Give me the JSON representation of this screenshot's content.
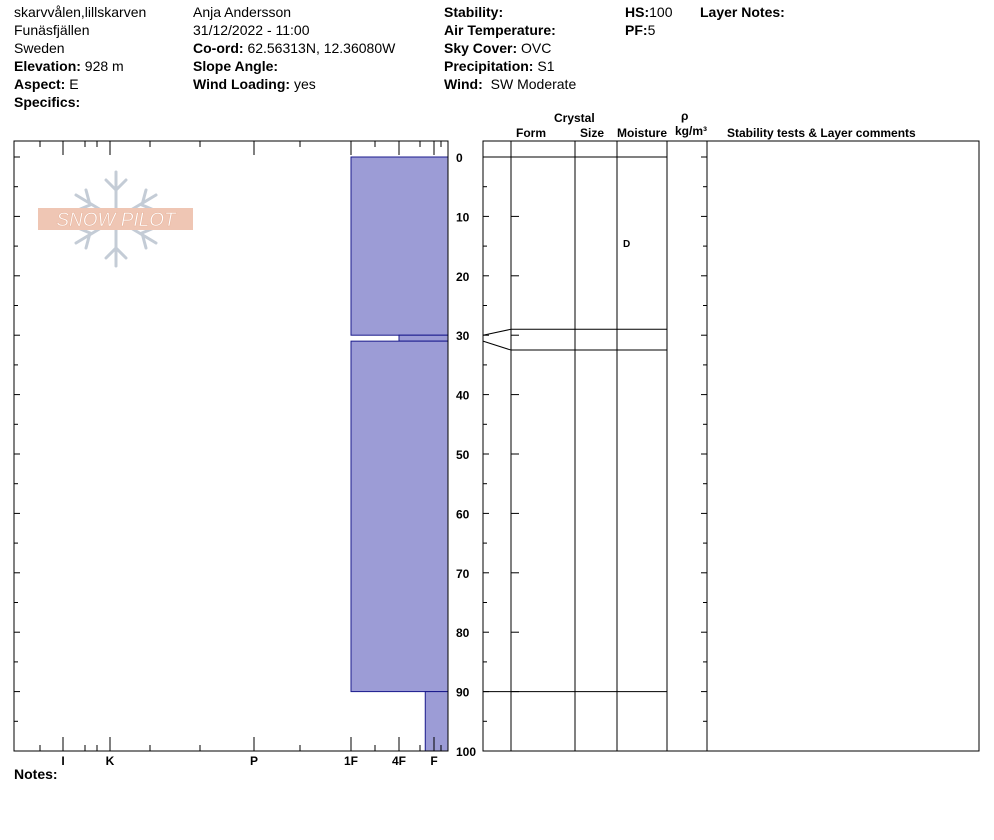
{
  "header": {
    "location": "skarvvålen,lillskarven",
    "region": "Funäsfjällen",
    "country": "Sweden",
    "elevation_label": "Elevation:",
    "elevation_value": "928 m",
    "aspect_label": "Aspect:",
    "aspect_value": "E",
    "specifics_label": "Specifics:",
    "observer": "Anja Andersson",
    "datetime": "31/12/2022 - 11:00",
    "coord_label": "Co-ord:",
    "coord_value": "62.56313N, 12.36080W",
    "slope_label": "Slope Angle:",
    "wind_loading_label": "Wind Loading:",
    "wind_loading_value": "yes",
    "stability_label": "Stability:",
    "air_temp_label": "Air Temperature:",
    "sky_label": "Sky Cover:",
    "sky_value": "OVC",
    "precip_label": "Precipitation:",
    "precip_value": "S1",
    "wind_label": "Wind:",
    "wind_value": "SW Moderate",
    "hs_label": "HS:",
    "hs_value": "100",
    "pf_label": "PF:",
    "pf_value": "5",
    "layer_notes_label": "Layer Notes:"
  },
  "columns": {
    "crystal": "Crystal",
    "form": "Form",
    "size": "Size",
    "moisture": "Moisture",
    "rho": "ρ",
    "density_unit": "kg/m³",
    "comments": "Stability tests & Layer comments"
  },
  "logo_text": "SNOW PILOT",
  "notes_label": "Notes:",
  "colors": {
    "hardness_fill": "#9c9cd6",
    "hardness_stroke": "#1a1a8c"
  },
  "chart_data": {
    "type": "snow-profile",
    "hardness_axis": {
      "labels": [
        "I",
        "K",
        "P",
        "1F",
        "4F",
        "F"
      ],
      "values": [
        6,
        5,
        4,
        3,
        2,
        1
      ]
    },
    "depth_axis": {
      "min": 0,
      "max": 100,
      "step": 10,
      "labels": [
        0,
        10,
        20,
        30,
        40,
        50,
        60,
        70,
        80,
        90,
        100
      ]
    },
    "layers": [
      {
        "top": 0,
        "bottom": 30,
        "hardness": 3
      },
      {
        "top": 30,
        "bottom": 31,
        "hardness": 2
      },
      {
        "top": 31,
        "bottom": 90,
        "hardness": 3
      },
      {
        "top": 90,
        "bottom": 100,
        "hardness": 1.25
      }
    ],
    "moisture_labels": [
      {
        "depth": 14.5,
        "text": "D"
      }
    ],
    "column_boundaries": [
      0,
      29,
      32.5,
      90
    ]
  }
}
